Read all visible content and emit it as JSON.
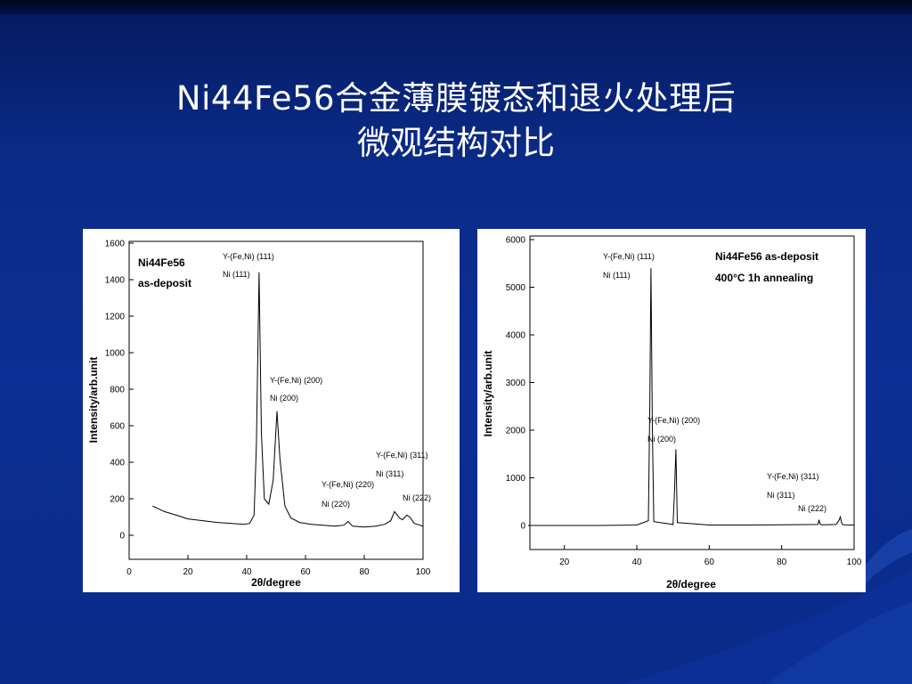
{
  "slide": {
    "title_line1": "Ni44Fe56合金薄膜镀态和退火处理后",
    "title_line2": "微观结构对比",
    "colors": {
      "background": "#0b2f94",
      "panel": "#ffffff",
      "ink": "#000000"
    }
  },
  "chart_data": [
    {
      "type": "line",
      "title": "",
      "legend_line1": "Ni44Fe56",
      "legend_line2": "as-deposit",
      "xlabel": "2θ/degree",
      "ylabel": "Intensity/arb.unit",
      "xlim": [
        0,
        100
      ],
      "ylim": [
        0,
        1600
      ],
      "xticks": [
        0,
        20,
        40,
        60,
        80,
        100
      ],
      "yticks": [
        0,
        200,
        400,
        600,
        800,
        1000,
        1200,
        1400,
        1600
      ],
      "series": [
        {
          "x": [
            8,
            12,
            16,
            20,
            25,
            30,
            35,
            39,
            41,
            42.5,
            43.3,
            44.2,
            45,
            46,
            47.5,
            49,
            50.3,
            51.3,
            53,
            55,
            58,
            62,
            66,
            70,
            73,
            74.5,
            76,
            80,
            84,
            87,
            89,
            90.3,
            92,
            93,
            94.5,
            95.5,
            97,
            99,
            100
          ],
          "y": [
            160,
            130,
            110,
            90,
            80,
            70,
            65,
            60,
            65,
            110,
            500,
            1440,
            560,
            200,
            170,
            300,
            680,
            420,
            160,
            95,
            70,
            60,
            55,
            50,
            55,
            75,
            50,
            45,
            50,
            60,
            80,
            130,
            95,
            85,
            110,
            100,
            65,
            55,
            50
          ]
        }
      ],
      "peaks": [
        {
          "label1": "Y-(Fe,Ni) (111)",
          "label2": "Ni (111)"
        },
        {
          "label1": "Y-(Fe,Ni) (200)",
          "label2": "Ni (200)"
        },
        {
          "label1": "Y-(Fe,Ni) (220)",
          "label2": "Ni (220)"
        },
        {
          "label1": "Y-(Fe,Ni) (311)",
          "label2": "Ni (311)"
        },
        {
          "label1": "Ni (222)"
        }
      ]
    },
    {
      "type": "line",
      "title": "",
      "legend_line1": "Ni44Fe56 as-deposit",
      "legend_line2": "400°C 1h annealing",
      "xlabel": "2θ/degree",
      "ylabel": "Intensity/arb.unit",
      "xlim": [
        10,
        100
      ],
      "ylim": [
        0,
        6000
      ],
      "xticks": [
        20,
        40,
        60,
        80,
        100
      ],
      "yticks": [
        0,
        1000,
        2000,
        3000,
        4000,
        5000,
        6000
      ],
      "series": [
        {
          "x": [
            10,
            20,
            30,
            40,
            43.2,
            43.6,
            43.9,
            44.3,
            44.7,
            50,
            50.4,
            50.8,
            51.2,
            60,
            70,
            80,
            90,
            90.3,
            90.6,
            91,
            95,
            95.8,
            96.2,
            96.6,
            97,
            100
          ],
          "y": [
            0,
            0,
            0,
            10,
            100,
            2500,
            5400,
            2000,
            80,
            20,
            700,
            1600,
            60,
            10,
            10,
            15,
            20,
            120,
            30,
            15,
            20,
            100,
            180,
            40,
            15,
            10
          ]
        }
      ],
      "peaks": [
        {
          "label1": "Y-(Fe,Ni) (111)",
          "label2": "Ni (111)"
        },
        {
          "label1": "Y-(Fe,Ni) (200)",
          "label2": "Ni (200)"
        },
        {
          "label1": "Y-(Fe,Ni) (311)",
          "label2": "Ni (311)"
        },
        {
          "label1": "Ni (222)"
        }
      ]
    }
  ]
}
